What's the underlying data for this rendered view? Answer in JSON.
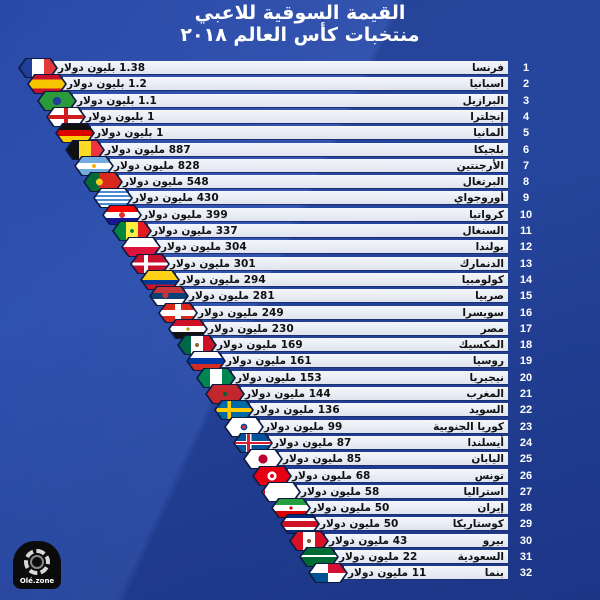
{
  "header": {
    "title_line1": "القيمة السوقية للاعبي",
    "title_line2": "منتخبات كأس العالم ٢٠١٨"
  },
  "logo": {
    "text": "Olé.zone"
  },
  "colors": {
    "background": "#2a4aa8",
    "bar": "#eef1f8",
    "text": "#111111",
    "rank_text": "#ffffff"
  },
  "chart_data": {
    "type": "bar",
    "orientation": "horizontal",
    "title": "القيمة السوقية للاعبي منتخبات كأس العالم ٢٠١٨",
    "xlabel": "",
    "ylabel": "",
    "unit_note": "values in USD millions (بليون = billion, مليون = million)",
    "categories": [
      "فرنسا",
      "اسبانيا",
      "البرازيل",
      "إنجلترا",
      "ألمانيا",
      "بلجيكا",
      "الأرجنتين",
      "البرتغال",
      "أوروجواي",
      "كرواتيا",
      "السنغال",
      "بولندا",
      "الدنمارك",
      "كولومبيا",
      "صربيا",
      "سويسرا",
      "مصر",
      "المكسيك",
      "روسيا",
      "نيجيريا",
      "المغرب",
      "السويد",
      "كوريا الجنوبية",
      "أيسلندا",
      "اليابان",
      "تونس",
      "استراليا",
      "إيران",
      "كوستاريكا",
      "بيرو",
      "السعودية",
      "بنما"
    ],
    "values": [
      1380,
      1200,
      1100,
      1000,
      1000,
      887,
      828,
      548,
      430,
      399,
      337,
      304,
      301,
      294,
      281,
      249,
      230,
      169,
      161,
      153,
      144,
      136,
      99,
      87,
      85,
      68,
      58,
      50,
      50,
      43,
      22,
      11
    ],
    "grid": false,
    "legend": "none"
  },
  "rows": [
    {
      "rank": "1",
      "country": "فرنسا",
      "value": "1.38 بليون دولار",
      "flag": "france"
    },
    {
      "rank": "2",
      "country": "اسبانيا",
      "value": "1.2 بليون دولار",
      "flag": "spain"
    },
    {
      "rank": "3",
      "country": "البرازيل",
      "value": "1.1 بليون دولار",
      "flag": "brazil"
    },
    {
      "rank": "4",
      "country": "إنجلترا",
      "value": "1 بليون دولار",
      "flag": "england"
    },
    {
      "rank": "5",
      "country": "ألمانيا",
      "value": "1 بليون دولار",
      "flag": "germany"
    },
    {
      "rank": "6",
      "country": "بلجيكا",
      "value": "887 مليون دولار",
      "flag": "belgium"
    },
    {
      "rank": "7",
      "country": "الأرجنتين",
      "value": "828 مليون دولار",
      "flag": "argentina"
    },
    {
      "rank": "8",
      "country": "البرتغال",
      "value": "548 مليون دولار",
      "flag": "portugal"
    },
    {
      "rank": "9",
      "country": "أوروجواي",
      "value": "430 مليون دولار",
      "flag": "uruguay"
    },
    {
      "rank": "10",
      "country": "كرواتيا",
      "value": "399 مليون دولار",
      "flag": "croatia"
    },
    {
      "rank": "11",
      "country": "السنغال",
      "value": "337 مليون دولار",
      "flag": "senegal"
    },
    {
      "rank": "12",
      "country": "بولندا",
      "value": "304 مليون دولار",
      "flag": "poland"
    },
    {
      "rank": "13",
      "country": "الدنمارك",
      "value": "301 مليون دولار",
      "flag": "denmark"
    },
    {
      "rank": "14",
      "country": "كولومبيا",
      "value": "294 مليون دولار",
      "flag": "colombia"
    },
    {
      "rank": "15",
      "country": "صربيا",
      "value": "281 مليون دولار",
      "flag": "serbia"
    },
    {
      "rank": "16",
      "country": "سويسرا",
      "value": "249 مليون دولار",
      "flag": "switzerland"
    },
    {
      "rank": "17",
      "country": "مصر",
      "value": "230 مليون دولار",
      "flag": "egypt"
    },
    {
      "rank": "18",
      "country": "المكسيك",
      "value": "169 مليون دولار",
      "flag": "mexico"
    },
    {
      "rank": "19",
      "country": "روسيا",
      "value": "161 مليون دولار",
      "flag": "russia"
    },
    {
      "rank": "20",
      "country": "نيجيريا",
      "value": "153 مليون دولار",
      "flag": "nigeria"
    },
    {
      "rank": "21",
      "country": "المغرب",
      "value": "144 مليون دولار",
      "flag": "morocco"
    },
    {
      "rank": "22",
      "country": "السويد",
      "value": "136 مليون دولار",
      "flag": "sweden"
    },
    {
      "rank": "23",
      "country": "كوريا الجنوبية",
      "value": "99 مليون دولار",
      "flag": "south-korea"
    },
    {
      "rank": "24",
      "country": "أيسلندا",
      "value": "87 مليون دولار",
      "flag": "iceland"
    },
    {
      "rank": "25",
      "country": "اليابان",
      "value": "85 مليون دولار",
      "flag": "japan"
    },
    {
      "rank": "26",
      "country": "تونس",
      "value": "68 مليون دولار",
      "flag": "tunisia"
    },
    {
      "rank": "27",
      "country": "استراليا",
      "value": "58 مليون دولار",
      "flag": "australia"
    },
    {
      "rank": "28",
      "country": "إيران",
      "value": "50 مليون دولار",
      "flag": "iran"
    },
    {
      "rank": "29",
      "country": "كوستاريكا",
      "value": "50 مليون دولار",
      "flag": "costa-rica"
    },
    {
      "rank": "30",
      "country": "بيرو",
      "value": "43 مليون دولار",
      "flag": "peru"
    },
    {
      "rank": "31",
      "country": "السعودية",
      "value": "22 مليون دولار",
      "flag": "saudi-arabia"
    },
    {
      "rank": "32",
      "country": "بنما",
      "value": "11 مليون دولار",
      "flag": "panama"
    }
  ]
}
